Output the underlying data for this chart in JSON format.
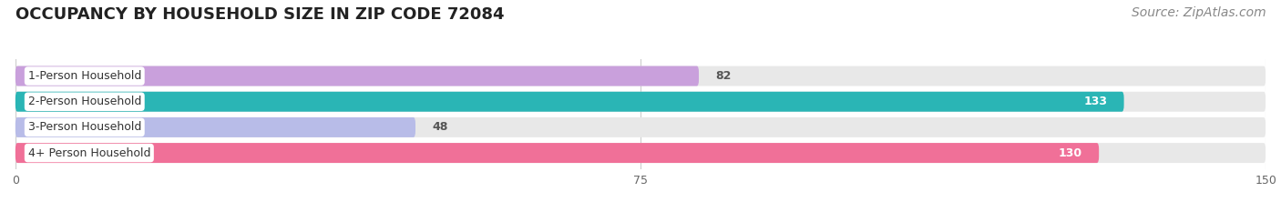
{
  "title": "OCCUPANCY BY HOUSEHOLD SIZE IN ZIP CODE 72084",
  "source": "Source: ZipAtlas.com",
  "categories": [
    "1-Person Household",
    "2-Person Household",
    "3-Person Household",
    "4+ Person Household"
  ],
  "values": [
    82,
    133,
    48,
    130
  ],
  "bar_colors": [
    "#c9a0dc",
    "#2ab5b5",
    "#b8bce8",
    "#f07098"
  ],
  "xlim": [
    0,
    150
  ],
  "xticks": [
    0,
    75,
    150
  ],
  "background_color": "#f5f5f5",
  "bar_bg_color": "#e8e8e8",
  "title_fontsize": 13,
  "source_fontsize": 10,
  "label_fontsize": 9,
  "value_fontsize": 9,
  "bar_height": 0.78,
  "label_bg_color": "#ffffff"
}
